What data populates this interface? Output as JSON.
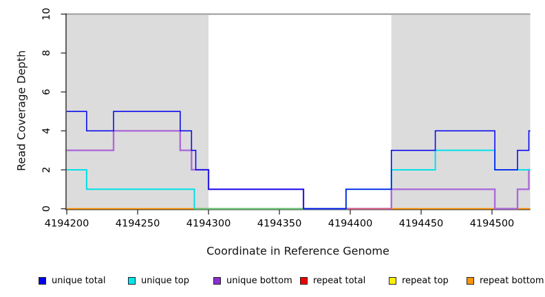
{
  "chart_data": {
    "type": "line",
    "step_mode": "after",
    "title": "",
    "xlabel": "Coordinate in Reference Genome",
    "ylabel": "Read Coverage Depth",
    "xlim": [
      4194199,
      4194527
    ],
    "ylim": [
      0,
      10
    ],
    "x_ticks": [
      4194200,
      4194250,
      4194300,
      4194350,
      4194400,
      4194450,
      4194500
    ],
    "y_ticks": [
      0,
      2,
      4,
      6,
      8,
      10
    ],
    "grid": false,
    "legend_position": "bottom",
    "shaded_regions": [
      {
        "x0": 4194199,
        "x1": 4194300,
        "color": "#dcdcdc"
      },
      {
        "x0": 4194429,
        "x1": 4194527,
        "color": "#dcdcdc"
      }
    ],
    "top_border": {
      "y": 10,
      "color": "#999999",
      "width": 2
    },
    "series": [
      {
        "name": "repeat top",
        "color": "#ffee00",
        "width": 1.8,
        "points": [
          [
            4194200,
            0
          ],
          [
            4194527,
            0
          ]
        ]
      },
      {
        "name": "repeat bottom",
        "color": "#ff8c00",
        "width": 1.8,
        "points": [
          [
            4194200,
            0
          ],
          [
            4194527,
            0
          ]
        ]
      },
      {
        "name": "unique bottom",
        "color": "#ab6ad8",
        "width": 2.4,
        "points": [
          [
            4194200,
            3
          ],
          [
            4194233,
            4
          ],
          [
            4194280,
            3
          ],
          [
            4194288,
            2
          ],
          [
            4194300,
            1
          ],
          [
            4194367,
            0
          ],
          [
            4194429,
            1
          ],
          [
            4194502,
            0
          ],
          [
            4194518,
            1
          ],
          [
            4194526,
            2
          ],
          [
            4194527,
            2
          ]
        ]
      },
      {
        "name": "repeat total",
        "color": "#e06070",
        "width": 1.6,
        "points": [
          [
            4194397,
            0
          ],
          [
            4194429,
            0
          ]
        ]
      },
      {
        "name": "unique top",
        "color": "#00e1e8",
        "width": 2.0,
        "points": [
          [
            4194200,
            2
          ],
          [
            4194214,
            1
          ],
          [
            4194290,
            0
          ],
          [
            4194397,
            1
          ],
          [
            4194429,
            2
          ],
          [
            4194460,
            3
          ],
          [
            4194502,
            2
          ],
          [
            4194527,
            2
          ]
        ]
      },
      {
        "name": "baseline green segment",
        "color": "#6cbe6c",
        "width": 2.2,
        "points": [
          [
            4194290,
            0
          ],
          [
            4194367,
            0
          ]
        ]
      },
      {
        "name": "unique total",
        "color": "#0b0bee",
        "width": 1.6,
        "points": [
          [
            4194200,
            5
          ],
          [
            4194214,
            4
          ],
          [
            4194233,
            5
          ],
          [
            4194280,
            4
          ],
          [
            4194288,
            3
          ],
          [
            4194291,
            2
          ],
          [
            4194300,
            1
          ],
          [
            4194367,
            0
          ],
          [
            4194397,
            1
          ],
          [
            4194429,
            3
          ],
          [
            4194460,
            4
          ],
          [
            4194502,
            2
          ],
          [
            4194518,
            3
          ],
          [
            4194526,
            4
          ],
          [
            4194527,
            4
          ]
        ]
      }
    ]
  },
  "axes": {
    "x_label": "Coordinate in Reference Genome",
    "y_label": "Read Coverage Depth",
    "axis_color": "#2b2b2b",
    "tick_label_color": "#000000"
  },
  "legend": {
    "items": [
      {
        "label": "unique total",
        "color": "#0000ee"
      },
      {
        "label": "unique top",
        "color": "#00e5ee"
      },
      {
        "label": "unique bottom",
        "color": "#8b2fd0"
      },
      {
        "label": "repeat total",
        "color": "#ee0000"
      },
      {
        "label": "repeat top",
        "color": "#ffee00"
      },
      {
        "label": "repeat bottom",
        "color": "#ff9400"
      }
    ]
  }
}
